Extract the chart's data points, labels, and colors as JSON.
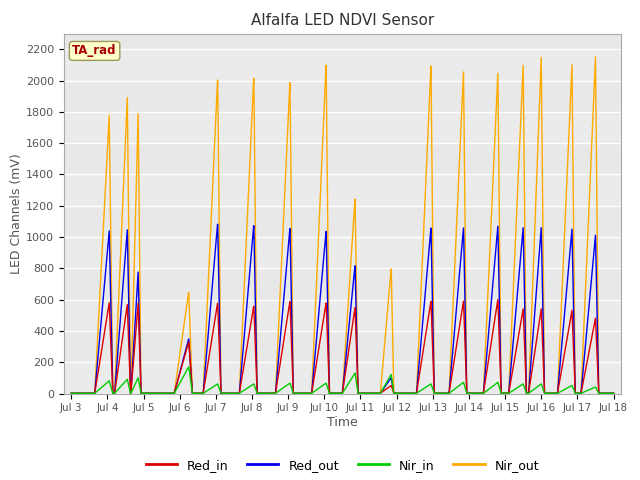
{
  "title": "Alfalfa LED NDVI Sensor",
  "xlabel": "Time",
  "ylabel": "LED Channels (mV)",
  "ylim": [
    0,
    2300
  ],
  "yticks": [
    0,
    200,
    400,
    600,
    800,
    1000,
    1200,
    1400,
    1600,
    1800,
    2000,
    2200
  ],
  "xtick_labels": [
    "Jul 3",
    "Jul 4",
    "Jul 5",
    "Jul 6",
    "Jul 7",
    "Jul 8",
    "Jul 9",
    "Jul 10",
    "Jul 11",
    "Jul 12",
    "Jul 13",
    "Jul 14",
    "Jul 15",
    "Jul 16",
    "Jul 17",
    "Jul 18"
  ],
  "colors": {
    "Red_in": "#dd0000",
    "Red_out": "#0000ee",
    "Nir_in": "#00cc00",
    "Nir_out": "#ffaa00"
  },
  "annotation_label": "TA_rad",
  "annotation_color": "#aa0000",
  "annotation_bg": "#ffffcc",
  "background_plot": "#e8e8e8",
  "background_band": "#d0d0d0",
  "legend_entries": [
    "Red_in",
    "Red_out",
    "Nir_in",
    "Nir_out"
  ]
}
